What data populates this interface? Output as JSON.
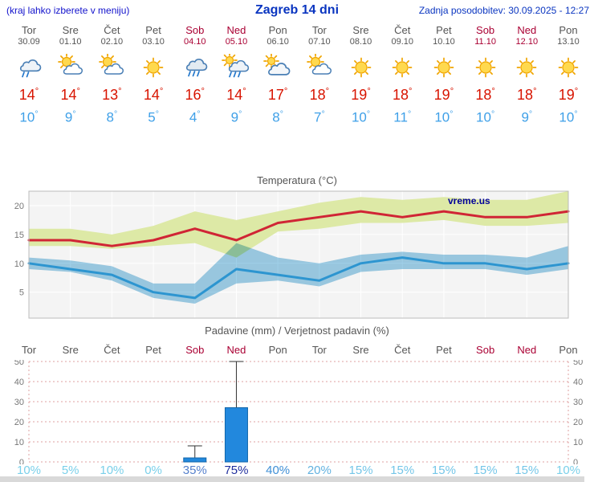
{
  "header": {
    "left_note": "(kraj lahko izberete v meniju)",
    "title": "Zagreb 14 dni",
    "updated": "Zadnja posodobitev: 30.09.2025 - 12:27"
  },
  "units": {
    "degree": "°"
  },
  "colors": {
    "header_blue": "#0a35c0",
    "weekday": "#555555",
    "weekend": "#aa0033",
    "temp_high": "#d81400",
    "temp_low": "#3fa0e8",
    "max_line": "#d02535",
    "min_line": "#2d95d0",
    "max_band": "#dde9a6",
    "min_band": "#9fcfe8",
    "bar": "#2288dd"
  },
  "days": [
    {
      "name": "Tor",
      "date": "30.09",
      "weekend": false,
      "icon": "cloud-drizzle",
      "high": "14",
      "low": "10"
    },
    {
      "name": "Sre",
      "date": "01.10",
      "weekend": false,
      "icon": "sun-cloud",
      "high": "14",
      "low": "9"
    },
    {
      "name": "Čet",
      "date": "02.10",
      "weekend": false,
      "icon": "sun-cloud",
      "high": "13",
      "low": "8"
    },
    {
      "name": "Pet",
      "date": "03.10",
      "weekend": false,
      "icon": "sun",
      "high": "14",
      "low": "5"
    },
    {
      "name": "Sob",
      "date": "04.10",
      "weekend": true,
      "icon": "rain",
      "high": "16",
      "low": "4"
    },
    {
      "name": "Ned",
      "date": "05.10",
      "weekend": true,
      "icon": "rain-sun",
      "high": "14",
      "low": "9"
    },
    {
      "name": "Pon",
      "date": "06.10",
      "weekend": false,
      "icon": "cloud-sun",
      "high": "17",
      "low": "8"
    },
    {
      "name": "Tor",
      "date": "07.10",
      "weekend": false,
      "icon": "sun-cloud",
      "high": "18",
      "low": "7"
    },
    {
      "name": "Sre",
      "date": "08.10",
      "weekend": false,
      "icon": "sun",
      "high": "19",
      "low": "10"
    },
    {
      "name": "Čet",
      "date": "09.10",
      "weekend": false,
      "icon": "sun",
      "high": "18",
      "low": "11"
    },
    {
      "name": "Pet",
      "date": "10.10",
      "weekend": false,
      "icon": "sun",
      "high": "19",
      "low": "10"
    },
    {
      "name": "Sob",
      "date": "11.10",
      "weekend": true,
      "icon": "sun",
      "high": "18",
      "low": "10"
    },
    {
      "name": "Ned",
      "date": "12.10",
      "weekend": true,
      "icon": "sun",
      "high": "18",
      "low": "9"
    },
    {
      "name": "Pon",
      "date": "13.10",
      "weekend": false,
      "icon": "sun",
      "high": "19",
      "low": "10"
    }
  ],
  "chart_data": [
    {
      "type": "line",
      "title": "Temperatura (°C)",
      "watermark": "vreme.us",
      "x_labels": [
        "Tor",
        "Sre",
        "Čet",
        "Pet",
        "Sob",
        "Ned",
        "Pon",
        "Tor",
        "Sre",
        "Čet",
        "Pet",
        "Sob",
        "Ned",
        "Pon"
      ],
      "ylim": [
        0.5,
        22.5
      ],
      "yticks": [
        5,
        10,
        15,
        20
      ],
      "series": [
        {
          "name": "max_temp",
          "color": "#d02535",
          "values": [
            14,
            14,
            13,
            14,
            16,
            14,
            17,
            18,
            19,
            18,
            19,
            18,
            18,
            19
          ]
        },
        {
          "name": "min_temp",
          "color": "#2d95d0",
          "values": [
            10,
            9,
            8,
            5,
            4,
            9,
            8,
            7,
            10,
            11,
            10,
            10,
            9,
            10
          ]
        }
      ],
      "bands": [
        {
          "name": "max_range",
          "color": "#dde9a6",
          "top": [
            16,
            16,
            15,
            16.5,
            19,
            17.5,
            19,
            20.5,
            21.5,
            21,
            21.5,
            21,
            21,
            22.5
          ],
          "bottom": [
            13,
            13,
            12.5,
            13,
            13.5,
            11,
            15.5,
            16,
            17,
            17,
            17.5,
            16.5,
            16.5,
            17
          ]
        },
        {
          "name": "min_range",
          "color": "#9fcfe8",
          "top": [
            11,
            10.5,
            9.5,
            6.5,
            6.5,
            13.5,
            11,
            10,
            11.5,
            12,
            11.5,
            11.5,
            11,
            13
          ],
          "bottom": [
            9,
            8.5,
            7,
            4,
            3,
            6.5,
            7,
            6,
            8.5,
            9,
            9,
            9,
            8,
            9
          ]
        }
      ],
      "grid": true,
      "legend": "none"
    },
    {
      "type": "bar",
      "title": "Padavine (mm) / Verjetnost padavin (%)",
      "categories": [
        "Tor",
        "Sre",
        "Čet",
        "Pet",
        "Sob",
        "Ned",
        "Pon",
        "Tor",
        "Sre",
        "Čet",
        "Pet",
        "Sob",
        "Ned",
        "Pon"
      ],
      "weekend": [
        false,
        false,
        false,
        false,
        true,
        true,
        false,
        false,
        false,
        false,
        false,
        true,
        true,
        false
      ],
      "values": [
        0,
        0,
        0,
        0,
        2,
        27,
        0,
        0,
        0,
        0,
        0,
        0,
        0,
        0
      ],
      "whisker_max": [
        0,
        0,
        0,
        0,
        8,
        50,
        0,
        0,
        0,
        0,
        0,
        0,
        0,
        0
      ],
      "ylim": [
        0,
        50
      ],
      "yticks": [
        0,
        10,
        20,
        30,
        40,
        50
      ],
      "bar_color": "#2288dd",
      "probabilities": [
        {
          "label": "10%",
          "color": "#7ad0ea"
        },
        {
          "label": "5%",
          "color": "#7ad0ea"
        },
        {
          "label": "10%",
          "color": "#7ad0ea"
        },
        {
          "label": "0%",
          "color": "#7ad0ea"
        },
        {
          "label": "35%",
          "color": "#5580cc"
        },
        {
          "label": "75%",
          "color": "#202f9e"
        },
        {
          "label": "40%",
          "color": "#3f8fd6"
        },
        {
          "label": "20%",
          "color": "#62b2e0"
        },
        {
          "label": "15%",
          "color": "#74c6e8"
        },
        {
          "label": "15%",
          "color": "#74c6e8"
        },
        {
          "label": "15%",
          "color": "#74c6e8"
        },
        {
          "label": "15%",
          "color": "#74c6e8"
        },
        {
          "label": "15%",
          "color": "#74c6e8"
        },
        {
          "label": "10%",
          "color": "#7ad0ea"
        }
      ]
    }
  ]
}
